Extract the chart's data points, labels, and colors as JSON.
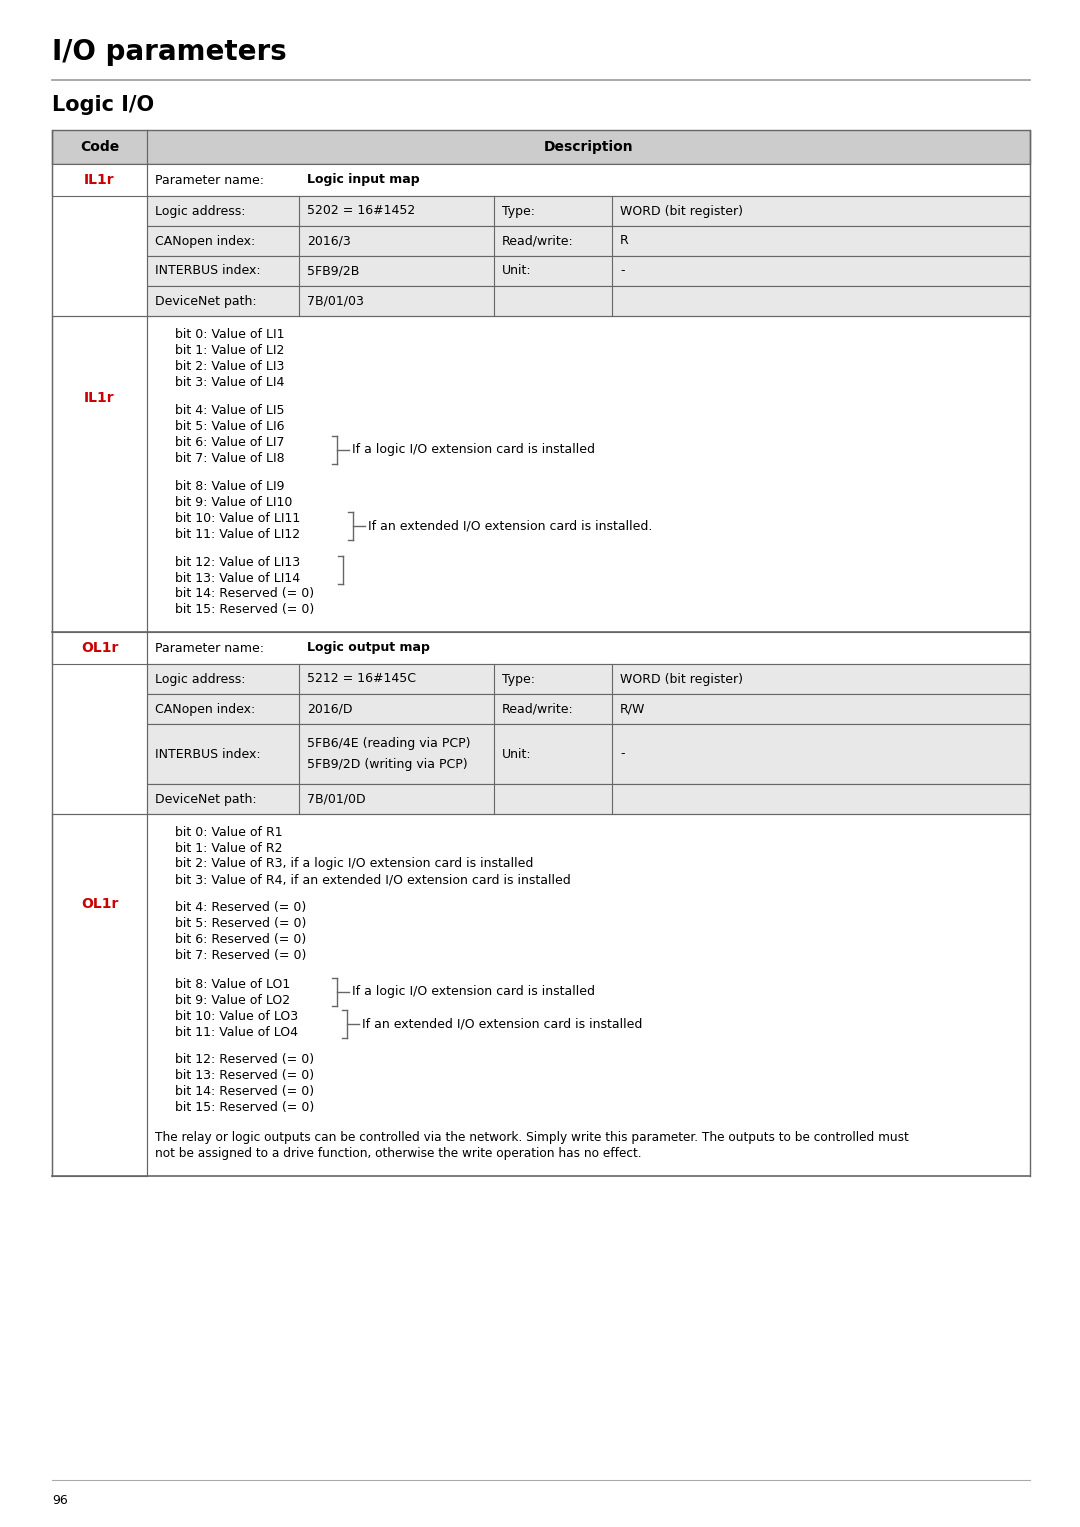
{
  "page_title": "I/O parameters",
  "section_title": "Logic I/O",
  "bg_color": "#ffffff",
  "header_bg": "#cccccc",
  "cell_bg_gray": "#e8e8e8",
  "cell_bg_white": "#ffffff",
  "border_color": "#666666",
  "code_red": "#cc0000",
  "IL1r": {
    "code": "IL1r",
    "param_name": "Logic input map",
    "rows": [
      [
        "Logic address:",
        "5202 = 16#1452",
        "Type:",
        "WORD (bit register)"
      ],
      [
        "CANopen index:",
        "2016/3",
        "Read/write:",
        "R"
      ],
      [
        "INTERBUS index:",
        "5FB9/2B",
        "Unit:",
        "-"
      ],
      [
        "DeviceNet path:",
        "7B/01/03",
        "",
        ""
      ]
    ],
    "bits": [
      [
        "bit 0: Value of LI1",
        "bit 1: Value of LI2",
        "bit 2: Value of LI3",
        "bit 3: Value of LI4"
      ],
      [
        "bit 4: Value of LI5",
        "bit 5: Value of LI6",
        "bit 6: Value of LI7",
        "bit 7: Value of LI8"
      ],
      [
        "bit 8: Value of LI9",
        "bit 9: Value of LI10",
        "bit 10: Value of LI11",
        "bit 11: Value of LI12"
      ],
      [
        "bit 12: Value of LI13",
        "bit 13: Value of LI14",
        "bit 14: Reserved (= 0)",
        "bit 15: Reserved (= 0)"
      ]
    ],
    "brackets": [
      {
        "rows": [
          2,
          3
        ],
        "group": 1,
        "label": "If a logic I/O extension card is installed"
      },
      {
        "rows": [
          2,
          3
        ],
        "group": 2,
        "label": "If an extended I/O extension card is installed."
      },
      {
        "rows": [
          0,
          1
        ],
        "group": 3,
        "label": ""
      }
    ]
  },
  "OL1r": {
    "code": "OL1r",
    "param_name": "Logic output map",
    "rows": [
      [
        "Logic address:",
        "5212 = 16#145C",
        "Type:",
        "WORD (bit register)"
      ],
      [
        "CANopen index:",
        "2016/D",
        "Read/write:",
        "R/W"
      ],
      [
        "INTERBUS index:",
        "5FB6/4E (reading via PCP)\n5FB9/2D (writing via PCP)",
        "Unit:",
        "-"
      ],
      [
        "DeviceNet path:",
        "7B/01/0D",
        "",
        ""
      ]
    ],
    "bits": [
      [
        "bit 0: Value of R1",
        "bit 1: Value of R2",
        "bit 2: Value of R3, if a logic I/O extension card is installed",
        "bit 3: Value of R4, if an extended I/O extension card is installed"
      ],
      [
        "bit 4: Reserved (= 0)",
        "bit 5: Reserved (= 0)",
        "bit 6: Reserved (= 0)",
        "bit 7: Reserved (= 0)"
      ],
      [
        "bit 8: Value of LO1",
        "bit 9: Value of LO2",
        "bit 10: Value of LO3",
        "bit 11: Value of LO4"
      ],
      [
        "bit 12: Reserved (= 0)",
        "bit 13: Reserved (= 0)",
        "bit 14: Reserved (= 0)",
        "bit 15: Reserved (= 0)"
      ]
    ],
    "brackets_g3": [
      {
        "rows": [
          0,
          1
        ],
        "label": "If a logic I/O extension card is installed"
      },
      {
        "rows": [
          2,
          3
        ],
        "label": "If an extended I/O extension card is installed"
      }
    ],
    "footer": "The relay or logic outputs can be controlled via the network. Simply write this parameter. The outputs to be controlled must\nnot be assigned to a drive function, otherwise the write operation has no effect."
  },
  "footer_page": "96"
}
